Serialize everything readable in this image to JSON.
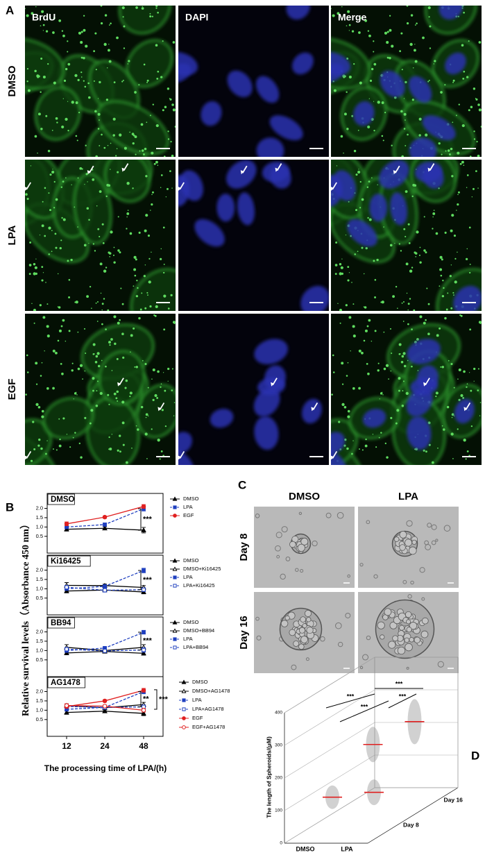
{
  "panel_a": {
    "label": "A",
    "columns": [
      "BrdU",
      "DAPI",
      "Merge"
    ],
    "rows": [
      "DMSO",
      "LPA",
      "EGF"
    ]
  },
  "panel_b": {
    "label": "B",
    "ylabel": "Relative survival levels（Absorbance 450 nm）",
    "xlabel": "The processing time of LPA/(h)"
  },
  "panel_c": {
    "label": "C",
    "columns": [
      "DMSO",
      "LPA"
    ],
    "rows": [
      "Day 8",
      "Day 16"
    ]
  },
  "panel_d": {
    "label": "D"
  },
  "chart_data": [
    {
      "type": "line",
      "title": "DMSO",
      "categories": [
        null,
        null,
        null
      ],
      "ylim": [
        -0.4,
        2.8
      ],
      "yticks": [
        0.5,
        {
          "value": 1,
          "label": "1.0"
        },
        1.5,
        {
          "value": 2,
          "label": "2.0"
        }
      ],
      "series": [
        {
          "name": "DMSO",
          "color": "#000000",
          "marker": "triangle",
          "filled": true,
          "dashed": false,
          "values": [
            0.88,
            0.93,
            0.83
          ],
          "errors": [
            0.1,
            0.08,
            0.15
          ]
        },
        {
          "name": "LPA",
          "color": "#1f3fbf",
          "marker": "square",
          "filled": true,
          "dashed": true,
          "values": [
            1.0,
            1.13,
            1.98
          ],
          "errors": [
            0.08,
            0.08,
            0.12
          ]
        },
        {
          "name": "EGF",
          "color": "#e02020",
          "marker": "circle",
          "filled": true,
          "dashed": false,
          "values": [
            1.17,
            1.53,
            2.1
          ],
          "errors": [
            0.1,
            0.06,
            0.1
          ]
        }
      ],
      "annotations": [
        {
          "text": "***",
          "from": 0.83,
          "to": 1.98
        }
      ]
    },
    {
      "type": "line",
      "title": "Ki16425",
      "categories": [
        null,
        null,
        null
      ],
      "ylim": [
        -0.4,
        2.8
      ],
      "yticks": [
        0.5,
        {
          "value": 1,
          "label": "1.0"
        },
        1.5,
        {
          "value": 2,
          "label": "2.0"
        }
      ],
      "series": [
        {
          "name": "DMSO",
          "color": "#000000",
          "marker": "triangle",
          "filled": true,
          "dashed": false,
          "values": [
            0.88,
            0.93,
            0.83
          ],
          "errors": [
            0.1,
            0.08,
            0.1
          ]
        },
        {
          "name": "DMSO+Ki16425",
          "color": "#000000",
          "marker": "triangle",
          "filled": false,
          "dashed": false,
          "values": [
            1.18,
            1.17,
            1.07
          ],
          "errors": [
            0.15,
            0.08,
            0.1
          ]
        },
        {
          "name": "LPA",
          "color": "#1f3fbf",
          "marker": "square",
          "filled": true,
          "dashed": true,
          "values": [
            1.0,
            1.13,
            1.98
          ],
          "errors": [
            0.08,
            0.08,
            0.12
          ]
        },
        {
          "name": "LPA+Ki16425",
          "color": "#1f3fbf",
          "marker": "square",
          "filled": false,
          "dashed": true,
          "values": [
            1.08,
            0.92,
            0.95
          ],
          "errors": [
            0.1,
            0.1,
            0.1
          ]
        }
      ],
      "annotations": [
        {
          "text": "***",
          "from": 0.95,
          "to": 1.98
        }
      ]
    },
    {
      "type": "line",
      "title": "BB94",
      "categories": [
        null,
        null,
        null
      ],
      "ylim": [
        -0.4,
        2.8
      ],
      "yticks": [
        0.5,
        {
          "value": 1,
          "label": "1.0"
        },
        1.5,
        {
          "value": 2,
          "label": "2.0"
        }
      ],
      "series": [
        {
          "name": "DMSO",
          "color": "#000000",
          "marker": "triangle",
          "filled": true,
          "dashed": false,
          "values": [
            0.87,
            0.95,
            0.85
          ],
          "errors": [
            0.1,
            0.06,
            0.1
          ]
        },
        {
          "name": "DMSO+BB94",
          "color": "#000000",
          "marker": "triangle",
          "filled": false,
          "dashed": false,
          "values": [
            1.17,
            1.0,
            1.17
          ],
          "errors": [
            0.15,
            0.06,
            0.15
          ]
        },
        {
          "name": "LPA",
          "color": "#1f3fbf",
          "marker": "square",
          "filled": true,
          "dashed": true,
          "values": [
            1.0,
            1.13,
            1.98
          ],
          "errors": [
            0.1,
            0.06,
            0.1
          ]
        },
        {
          "name": "LPA+BB94",
          "color": "#1f3fbf",
          "marker": "square",
          "filled": false,
          "dashed": true,
          "values": [
            1.07,
            0.98,
            1.03
          ],
          "errors": [
            0.1,
            0.06,
            0.12
          ]
        }
      ],
      "annotations": [
        {
          "text": "***",
          "from": 1.03,
          "to": 1.98
        }
      ]
    },
    {
      "type": "line",
      "title": "AG1478",
      "categories": [
        "12",
        "24",
        "48"
      ],
      "ylim": [
        -0.4,
        2.8
      ],
      "yticks": [
        0.5,
        {
          "value": 1,
          "label": "1.0"
        },
        1.5,
        {
          "value": 2,
          "label": "2.0"
        }
      ],
      "series": [
        {
          "name": "DMSO",
          "color": "#000000",
          "marker": "triangle",
          "filled": true,
          "dashed": false,
          "values": [
            0.88,
            0.95,
            0.83
          ],
          "errors": [
            0.1,
            0.06,
            0.12
          ]
        },
        {
          "name": "DMSO+AG1478",
          "color": "#000000",
          "marker": "triangle",
          "filled": false,
          "dashed": false,
          "values": [
            1.25,
            1.13,
            1.3
          ],
          "errors": [
            0.1,
            0.08,
            0.12
          ]
        },
        {
          "name": "LPA",
          "color": "#1f3fbf",
          "marker": "square",
          "filled": true,
          "dashed": true,
          "values": [
            1.05,
            1.15,
            2.0
          ],
          "errors": [
            0.1,
            0.08,
            0.12
          ]
        },
        {
          "name": "LPA+AG1478",
          "color": "#1f3fbf",
          "marker": "square",
          "filled": false,
          "dashed": true,
          "values": [
            1.2,
            1.15,
            1.18
          ],
          "errors": [
            0.1,
            0.08,
            0.1
          ]
        },
        {
          "name": "EGF",
          "color": "#e02020",
          "marker": "circle",
          "filled": true,
          "dashed": false,
          "values": [
            1.2,
            1.5,
            2.07
          ],
          "errors": [
            0.1,
            0.06,
            0.1
          ]
        },
        {
          "name": "EGF+AG1478",
          "color": "#e02020",
          "marker": "circle",
          "filled": false,
          "dashed": false,
          "values": [
            1.25,
            1.22,
            1.0
          ],
          "errors": [
            0.1,
            0.06,
            0.1
          ]
        }
      ],
      "annotations": [
        {
          "text": "**",
          "from": 1.18,
          "to": 2.0
        },
        {
          "text": "***",
          "from": 1.05,
          "to": 2.1
        }
      ]
    },
    {
      "type": "scatter3d",
      "ylabel": "The length of Spheroids/(μM)",
      "categories": [
        "DMSO",
        "LPA"
      ],
      "ylim": [
        0,
        400
      ],
      "yticks": [
        0,
        100,
        200,
        300,
        400
      ],
      "series": [
        {
          "name": "Day 8",
          "color": "#e02020",
          "values": [
            90,
            105
          ]
        },
        {
          "name": "Day 16",
          "color": "#e02020",
          "values": [
            175,
            245
          ]
        }
      ],
      "annotations": [
        "***",
        "***",
        "***",
        "***"
      ]
    }
  ]
}
